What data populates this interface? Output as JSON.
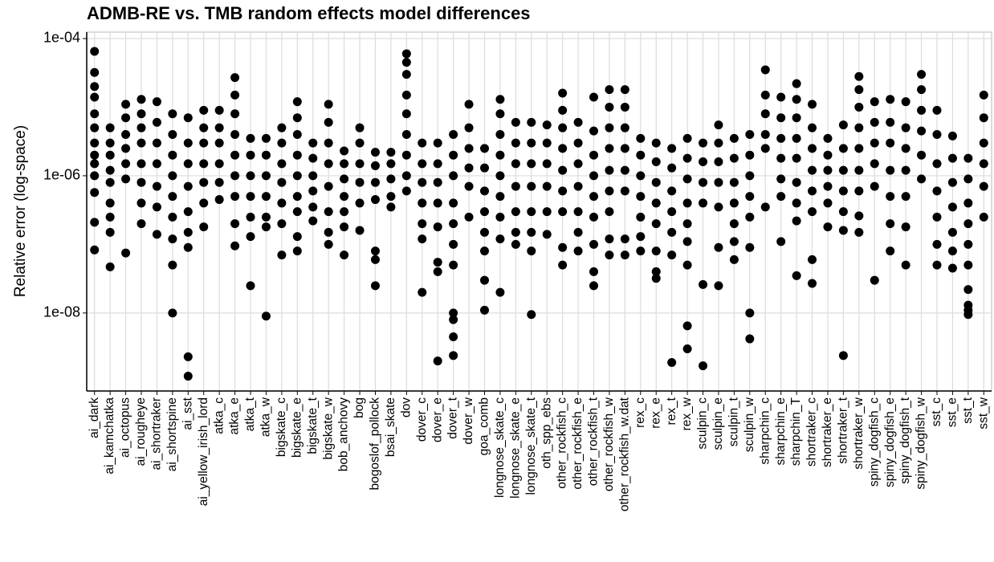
{
  "chart_data": {
    "type": "strip",
    "title": "ADMB-RE vs. TMB random effects model differences",
    "y_label": "Relative error (log-space)",
    "log_scale": true,
    "grid": true,
    "color": "#000000",
    "ylim": [
      7.3e-10,
      0.000124
    ],
    "yticks": [
      {
        "value": 0.0001,
        "label": "1e-04"
      },
      {
        "value": 1e-06,
        "label": "1e-06"
      },
      {
        "value": 1e-08,
        "label": "1e-08"
      }
    ],
    "categories": [
      "ai_dark",
      "ai_kamchatka",
      "ai_octopus",
      "ai_rougheye",
      "ai_shortraker",
      "ai_shortspine",
      "ai_sst",
      "ai_yellow_irish_lord",
      "atka_c",
      "atka_e",
      "atka_t",
      "atka_w",
      "bigskate_c",
      "bigskate_e",
      "bigskate_t",
      "bigskate_w",
      "bob_anchovy",
      "bog",
      "bogoslof_pollock",
      "bsai_skate",
      "dov",
      "dover_c",
      "dover_e",
      "dover_t",
      "dover_w",
      "goa_comb",
      "longnose_skate_c",
      "longnose_skate_e",
      "longnose_skate_t",
      "oth_spp_ebs",
      "other_rockfish_c",
      "other_rockfish_e",
      "other_rockfish_t",
      "other_rockfish_w",
      "other_rockfish_w.dat",
      "rex_c",
      "rex_e",
      "rex_t",
      "rex_w",
      "sculpin_c",
      "sculpin_e",
      "sculpin_t",
      "sculpin_w",
      "sharpchin_c",
      "sharpchin_e",
      "sharpchin_T",
      "shortraker_c",
      "shortraker_e",
      "shortraker_t",
      "shortraker_w",
      "spiny_dogfish_c",
      "spiny_dogfish_e",
      "spiny_dogfish_t",
      "spiny_dogfish_w",
      "sst_c",
      "sst_e",
      "sst_t",
      "sst_w"
    ],
    "values": [
      [
        6.5e-05,
        3.2e-05,
        2e-05,
        1.4e-05,
        8e-06,
        5e-06,
        3e-06,
        2e-06,
        1.5e-06,
        1e-06,
        5.7e-07,
        2.1e-07,
        8.3e-08
      ],
      [
        5e-06,
        3e-06,
        2e-06,
        1.2e-06,
        8e-07,
        4e-07,
        2.5e-07,
        1.5e-07,
        4.7e-08
      ],
      [
        1.1e-05,
        7e-06,
        4e-06,
        2.5e-06,
        1.5e-06,
        9e-07,
        7.5e-08
      ],
      [
        1.3e-05,
        8e-06,
        5e-06,
        3e-06,
        1.5e-06,
        8e-07,
        4e-07,
        2e-07
      ],
      [
        1.2e-05,
        6e-06,
        3e-06,
        1.5e-06,
        7e-07,
        3.5e-07,
        1.4e-07
      ],
      [
        8e-06,
        4e-06,
        2e-06,
        1e-06,
        5e-07,
        2.5e-07,
        1.2e-07,
        5e-08,
        1e-08
      ],
      [
        7e-06,
        3e-06,
        1.5e-06,
        7e-07,
        3e-07,
        1.5e-07,
        9e-08,
        2.3e-09,
        1.2e-09
      ],
      [
        9e-06,
        5e-06,
        3e-06,
        1.5e-06,
        8e-07,
        4e-07,
        1.8e-07
      ],
      [
        9e-06,
        5e-06,
        3e-06,
        1.5e-06,
        8e-07,
        4.5e-07
      ],
      [
        2.7e-05,
        1.5e-05,
        8e-06,
        4e-06,
        2e-06,
        1e-06,
        5e-07,
        2e-07,
        9.5e-08
      ],
      [
        3.5e-06,
        2e-06,
        1e-06,
        5e-07,
        2.5e-07,
        1.3e-07,
        2.5e-08
      ],
      [
        3.5e-06,
        2e-06,
        1e-06,
        5e-07,
        2.5e-07,
        1.8e-07,
        9e-09
      ],
      [
        5e-06,
        3e-06,
        1.5e-06,
        8e-07,
        4e-07,
        2e-07,
        7e-08
      ],
      [
        1.2e-05,
        7e-06,
        4e-06,
        2e-06,
        1e-06,
        5e-07,
        3e-07,
        1.3e-07,
        8e-08
      ],
      [
        3e-06,
        1.8e-06,
        1e-06,
        6e-07,
        3.5e-07,
        2.2e-07
      ],
      [
        1.1e-05,
        6e-06,
        3e-06,
        1.5e-06,
        7e-07,
        3e-07,
        1.5e-07,
        1e-07
      ],
      [
        2.3e-06,
        1.5e-06,
        9e-07,
        5e-07,
        3e-07,
        1.8e-07,
        7e-08
      ],
      [
        5e-06,
        3e-06,
        1.5e-06,
        8e-07,
        4e-07,
        1.6e-07
      ],
      [
        2.2e-06,
        1.4e-06,
        8e-07,
        4.5e-07,
        8e-08,
        6e-08,
        2.5e-08
      ],
      [
        2.2e-06,
        1.5e-06,
        9e-07,
        5e-07,
        3.5e-07
      ],
      [
        6e-05,
        4.5e-05,
        3e-05,
        1.5e-05,
        8e-06,
        4e-06,
        2e-06,
        1e-06,
        6e-07
      ],
      [
        3e-06,
        1.5e-06,
        8e-07,
        4e-07,
        2e-07,
        1.2e-07,
        2e-08
      ],
      [
        3e-06,
        1.5e-06,
        8e-07,
        4e-07,
        1.8e-07,
        5.5e-08,
        4e-08,
        2e-09
      ],
      [
        4e-06,
        2e-06,
        1e-06,
        4e-07,
        2e-07,
        1e-07,
        5e-08,
        1e-08,
        8e-09,
        4.5e-09,
        2.4e-09
      ],
      [
        1.1e-05,
        5e-06,
        2.5e-06,
        1.3e-06,
        7e-07,
        2.5e-07
      ],
      [
        2.5e-06,
        1.3e-06,
        6e-07,
        3e-07,
        1.5e-07,
        8e-08,
        3e-08,
        1.1e-08
      ],
      [
        1.3e-05,
        8e-06,
        4e-06,
        2e-06,
        1e-06,
        5e-07,
        2.5e-07,
        1.2e-07,
        2e-08
      ],
      [
        6e-06,
        3e-06,
        1.5e-06,
        7e-07,
        3e-07,
        1.5e-07,
        1e-07
      ],
      [
        6e-06,
        3e-06,
        1.5e-06,
        7e-07,
        3e-07,
        1.5e-07,
        8e-08,
        9.5e-09
      ],
      [
        5.5e-06,
        3e-06,
        1.5e-06,
        7e-07,
        3e-07,
        1.4e-07
      ],
      [
        1.6e-05,
        9e-06,
        5e-06,
        2.5e-06,
        1.2e-06,
        6e-07,
        3e-07,
        9e-08,
        5e-08
      ],
      [
        6e-06,
        3e-06,
        1.5e-06,
        7e-07,
        3e-07,
        1.5e-07,
        8e-08
      ],
      [
        1.4e-05,
        4.5e-06,
        2e-06,
        1e-06,
        5e-07,
        2.5e-07,
        1e-07,
        4e-08,
        2.5e-08
      ],
      [
        1.8e-05,
        1e-05,
        5e-06,
        2.5e-06,
        1.2e-06,
        6e-07,
        3e-07,
        1.2e-07,
        7e-08
      ],
      [
        1.8e-05,
        1e-05,
        5e-06,
        2.5e-06,
        1.2e-06,
        6e-07,
        1.2e-07,
        7e-08
      ],
      [
        3.5e-06,
        2e-06,
        1e-06,
        5e-07,
        2.5e-07,
        1.3e-07,
        8e-08
      ],
      [
        3e-06,
        1.6e-06,
        8e-07,
        4e-07,
        2e-07,
        8e-08,
        4e-08,
        3.2e-08
      ],
      [
        2.5e-06,
        1.3e-06,
        6e-07,
        3e-07,
        1.5e-07,
        7e-08,
        1.9e-09
      ],
      [
        3.5e-06,
        1.8e-06,
        9e-07,
        4e-07,
        2e-07,
        1.1e-07,
        5e-08,
        6.5e-09,
        3e-09
      ],
      [
        3e-06,
        1.6e-06,
        8e-07,
        4e-07,
        2.6e-08,
        1.7e-09
      ],
      [
        5.5e-06,
        3e-06,
        1.6e-06,
        8e-07,
        3.5e-07,
        9e-08,
        2.5e-08
      ],
      [
        3.5e-06,
        1.8e-06,
        8e-07,
        4e-07,
        2e-07,
        1.1e-07,
        6e-08
      ],
      [
        4e-06,
        2e-06,
        1e-06,
        5e-07,
        2.5e-07,
        9e-08,
        1e-08,
        4.2e-09
      ],
      [
        3.5e-05,
        1.5e-05,
        8e-06,
        4e-06,
        2.5e-06,
        3.5e-07
      ],
      [
        1.4e-05,
        7e-06,
        3.5e-06,
        1.8e-06,
        9e-07,
        5e-07,
        1.1e-07
      ],
      [
        2.2e-05,
        1.3e-05,
        7e-06,
        3.5e-06,
        1.8e-06,
        8e-07,
        4e-07,
        2.2e-07,
        3.5e-08
      ],
      [
        1.1e-05,
        5e-06,
        2.5e-06,
        1.2e-06,
        6e-07,
        3e-07,
        6e-08,
        2.7e-08
      ],
      [
        3.5e-06,
        2e-06,
        1.2e-06,
        7e-07,
        4e-07,
        1.8e-07
      ],
      [
        5.5e-06,
        2.5e-06,
        1.2e-06,
        6e-07,
        3e-07,
        1.6e-07,
        2.4e-09
      ],
      [
        2.8e-05,
        1.8e-05,
        1e-05,
        5e-06,
        2.5e-06,
        1.2e-06,
        6e-07,
        2.6e-07,
        1.5e-07
      ],
      [
        1.2e-05,
        6e-06,
        3e-06,
        1.5e-06,
        7e-07,
        3e-08
      ],
      [
        1.3e-05,
        6e-06,
        3e-06,
        1.2e-06,
        5e-07,
        2e-07,
        8e-08
      ],
      [
        1.2e-05,
        5e-06,
        2.5e-06,
        1.2e-06,
        5e-07,
        1.8e-07,
        5e-08
      ],
      [
        3e-05,
        1.8e-05,
        9e-06,
        4.5e-06,
        2e-06,
        9e-07
      ],
      [
        9e-06,
        4e-06,
        1.5e-06,
        6e-07,
        2.5e-07,
        1e-07,
        5e-08
      ],
      [
        3.8e-06,
        1.8e-06,
        8e-07,
        3.5e-07,
        1.5e-07,
        8e-08,
        4.5e-08
      ],
      [
        1.8e-06,
        9e-07,
        4e-07,
        2e-07,
        1e-07,
        5e-08,
        2.2e-08,
        1.3e-08,
        1.1e-08,
        9.5e-09
      ],
      [
        1.5e-05,
        7e-06,
        3e-06,
        1.5e-06,
        7e-07,
        2.5e-07
      ]
    ]
  }
}
